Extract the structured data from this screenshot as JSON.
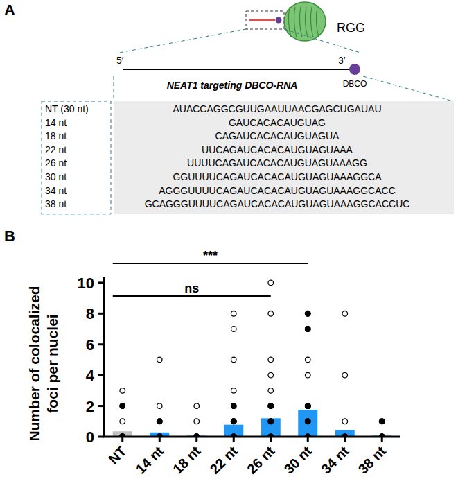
{
  "panel_a": {
    "letter": "A",
    "protein_label": "RGG",
    "five_prime": "5′",
    "three_prime": "3′",
    "tag": "DBCO",
    "title": "NEAT1 targeting DBCO-RNA",
    "rows": [
      {
        "label": "NT (30 nt)",
        "sequence": "AUACCAGGCGUUGAAUUAACGAGCUGAUAU"
      },
      {
        "label": "14 nt",
        "sequence": "GAUCACACAUGUAG"
      },
      {
        "label": "18 nt",
        "sequence": "CAGAUCACACAUGUAGUA"
      },
      {
        "label": "22 nt",
        "sequence": "UUCAGAUCACACAUGUAGUAAA"
      },
      {
        "label": "26 nt",
        "sequence": "UUUUCAGAUCACACAUGUAGUAAAGG"
      },
      {
        "label": "30 nt",
        "sequence": "GGUUUUCAGAUCACACAUGUAGUAAAGGCA"
      },
      {
        "label": "34 nt",
        "sequence": "AGGGUUUUCAGAUCACACAUGUAGUAAAGGCACC"
      },
      {
        "label": "38 nt",
        "sequence": "GCAGGGUUUUCAGAUCACACAUGUAGUAAAGGCACCUC"
      }
    ]
  },
  "panel_b": {
    "letter": "B"
  },
  "chart_data": {
    "type": "bar",
    "y_label": "Number of colocalized foci per nuclei",
    "categories": [
      "NT",
      "14 nt",
      "18 nt",
      "22 nt",
      "26 nt",
      "30 nt",
      "34 nt",
      "38 nt"
    ],
    "values": [
      0.35,
      0.28,
      0.07,
      0.78,
      1.2,
      1.75,
      0.45,
      0.07
    ],
    "colors": [
      "#c0c0c0",
      "#2196f3",
      "#2196f3",
      "#2196f3",
      "#2196f3",
      "#2196f3",
      "#2196f3",
      "#2196f3"
    ],
    "points": [
      [
        0,
        0,
        0,
        0,
        0,
        0,
        1,
        2,
        2,
        3
      ],
      [
        0,
        0,
        0,
        0,
        0,
        0,
        1,
        1,
        2,
        5
      ],
      [
        0,
        0,
        0,
        0,
        0,
        0,
        0,
        0,
        1,
        2
      ],
      [
        0,
        0,
        0,
        0,
        0,
        1,
        1,
        1,
        2,
        2,
        3,
        5,
        7,
        8
      ],
      [
        0,
        0,
        0,
        0,
        0,
        1,
        1,
        2,
        2,
        2,
        3,
        4,
        5,
        8,
        10
      ],
      [
        0,
        0,
        0,
        1,
        1,
        2,
        2,
        2,
        2,
        2,
        4,
        5,
        7,
        7,
        8,
        8
      ],
      [
        0,
        0,
        0,
        0,
        0,
        0,
        1,
        4,
        8
      ],
      [
        0,
        0,
        0,
        0,
        0,
        0,
        1,
        1
      ]
    ],
    "ylim": [
      0,
      10.4
    ],
    "yticks": [
      0,
      2,
      4,
      6,
      8,
      10
    ],
    "annotations": [
      {
        "text": "***",
        "from": "NT",
        "to": "30 nt"
      },
      {
        "text": "ns",
        "from": "NT",
        "to": "26 nt"
      }
    ]
  }
}
